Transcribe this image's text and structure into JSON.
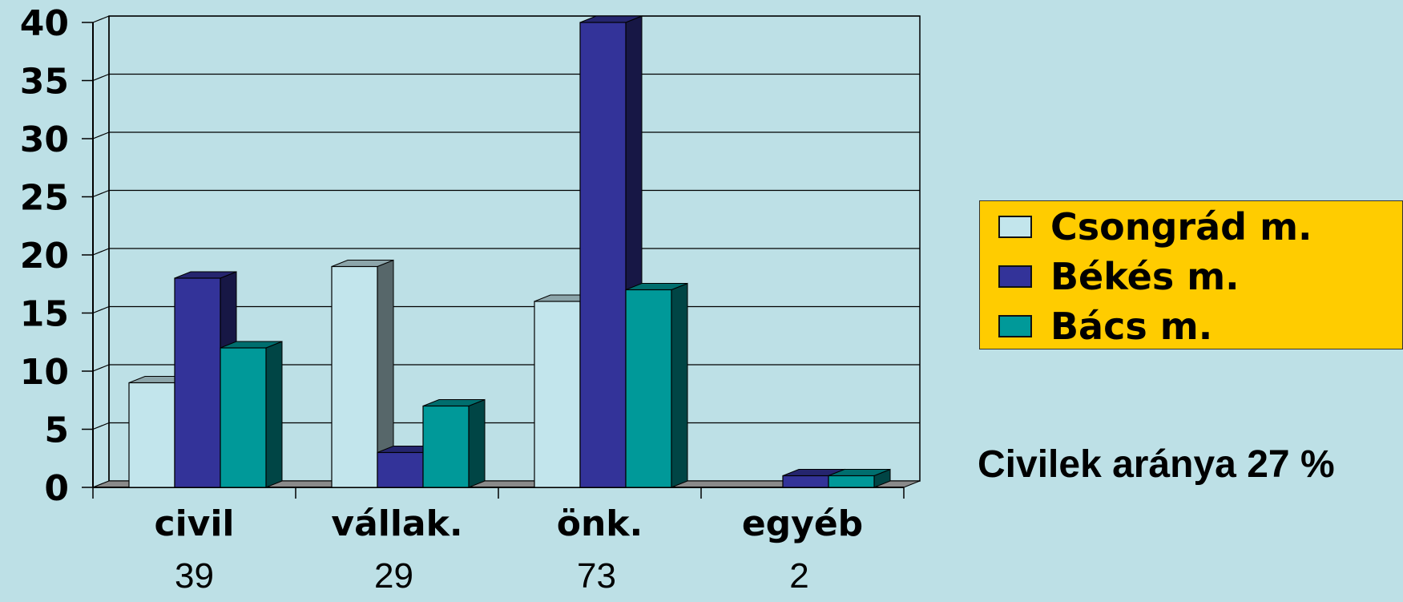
{
  "chart_data": {
    "type": "bar",
    "title": "",
    "xlabel": "",
    "ylabel": "",
    "categories": [
      "civil",
      "vállak.",
      "önk.",
      "egyéb"
    ],
    "category_totals": [
      "39",
      "29",
      "73",
      "2"
    ],
    "series": [
      {
        "name": "Csongrád m.",
        "color": "#c2e5ec",
        "values": [
          9,
          19,
          16,
          0
        ]
      },
      {
        "name": "Békés m.",
        "color": "#333399",
        "values": [
          18,
          3,
          40,
          1
        ]
      },
      {
        "name": "Bács m.",
        "color": "#009999",
        "values": [
          12,
          7,
          17,
          1
        ]
      }
    ],
    "ylim": [
      0,
      40
    ],
    "yticks": [
      "0",
      "5",
      "10",
      "15",
      "20",
      "25",
      "30",
      "35",
      "40"
    ],
    "grid": true,
    "legend_placement": "right",
    "legend_background": "#ffcc00",
    "style": "3d-clustered-column"
  },
  "legend": {
    "items": [
      {
        "label": "Csongrád m.",
        "color": "#c2e5ec"
      },
      {
        "label": "Békés m.",
        "color": "#333399"
      },
      {
        "label": "Bács m.",
        "color": "#009999"
      }
    ]
  },
  "note": "Civilek aránya 27 %"
}
